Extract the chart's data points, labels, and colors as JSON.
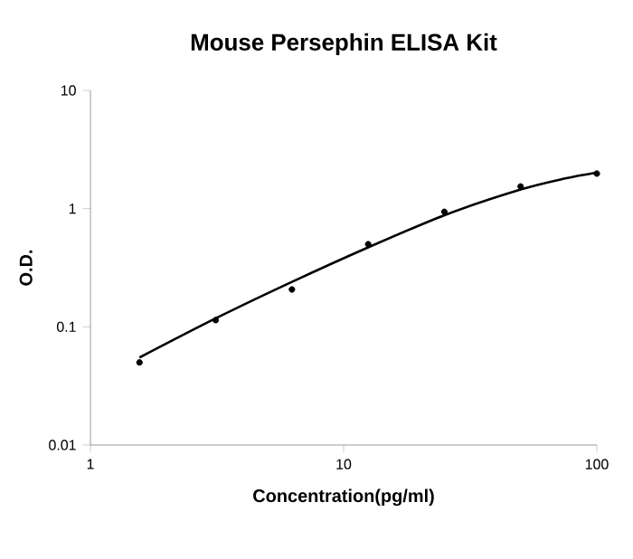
{
  "chart_data": {
    "type": "scatter",
    "title": "Mouse Persephin ELISA Kit",
    "xlabel": "Concentration(pg/ml)",
    "ylabel": "O.D.",
    "log": "xy",
    "xlim": [
      1,
      100
    ],
    "ylim": [
      0.01,
      10
    ],
    "xticks": [
      1,
      10,
      100
    ],
    "yticks": [
      0.01,
      0.1,
      1,
      10
    ],
    "grid": false,
    "series": [
      {
        "color": "#000000",
        "marker": "circle",
        "x": [
          1.5625,
          3.125,
          6.25,
          12.5,
          25,
          50,
          100
        ],
        "values": [
          0.05,
          0.114,
          0.207,
          0.5,
          0.94,
          1.54,
          1.98
        ]
      },
      {
        "type": "line",
        "color": "#000000",
        "marker": "none",
        "line_style": "solid",
        "x": [
          1.5625,
          3.125,
          6.25,
          12.5,
          25,
          50,
          75,
          100
        ],
        "values": [
          0.055,
          0.118,
          0.24,
          0.47,
          0.88,
          1.45,
          1.8,
          2.02
        ]
      }
    ]
  }
}
